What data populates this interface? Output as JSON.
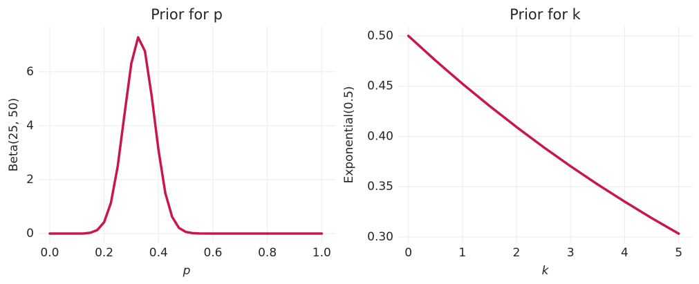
{
  "chart_data": [
    {
      "type": "line",
      "title": "Prior for p",
      "xlabel": "p",
      "ylabel": "Beta(25, 50)",
      "grid": true,
      "x": [
        0,
        0.05,
        0.1,
        0.125,
        0.15,
        0.175,
        0.2,
        0.225,
        0.25,
        0.275,
        0.3,
        0.325,
        0.35,
        0.375,
        0.4,
        0.425,
        0.45,
        0.475,
        0.5,
        0.525,
        0.55,
        0.6,
        0.7,
        0.8,
        0.9,
        1
      ],
      "series": [
        {
          "color": "#c8174a",
          "values": [
            0,
            0,
            0,
            0.002,
            0.03,
            0.13,
            0.42,
            1.14,
            2.5,
            4.43,
            6.31,
            7.28,
            6.77,
            5.09,
            3.09,
            1.5,
            0.62,
            0.21,
            0.06,
            0.015,
            0.003,
            0,
            0,
            0,
            0,
            0
          ]
        }
      ],
      "xlim": [
        -0.043,
        1.05
      ],
      "ylim": [
        -0.36,
        7.69
      ],
      "xticks": [
        {
          "value": 0,
          "label": "0.0"
        },
        0.2,
        0.4,
        0.6,
        0.8,
        {
          "value": 1,
          "label": "1.0"
        }
      ],
      "yticks": [
        0,
        2,
        4,
        6
      ]
    },
    {
      "type": "line",
      "title": "Prior for k",
      "xlabel": "k",
      "ylabel": "Exponential(0.5)",
      "grid": true,
      "x": [
        0,
        0.5,
        1,
        1.5,
        2,
        2.5,
        3,
        3.5,
        4,
        4.5,
        5
      ],
      "series": [
        {
          "color": "#c8174a",
          "values": [
            0.5,
            0.4756,
            0.4524,
            0.4304,
            0.4094,
            0.3894,
            0.3704,
            0.3523,
            0.3352,
            0.3188,
            0.3033
          ]
        }
      ],
      "xlim": [
        -0.2,
        5.26
      ],
      "ylim": [
        0.2938,
        0.5096
      ],
      "xticks": [
        0,
        1,
        2,
        3,
        4,
        5
      ],
      "yticks": [
        {
          "value": 0.3,
          "label": "0.30"
        },
        {
          "value": 0.35,
          "label": "0.35"
        },
        {
          "value": 0.4,
          "label": "0.40"
        },
        {
          "value": 0.45,
          "label": "0.45"
        },
        {
          "value": 0.5,
          "label": "0.50"
        }
      ]
    }
  ]
}
